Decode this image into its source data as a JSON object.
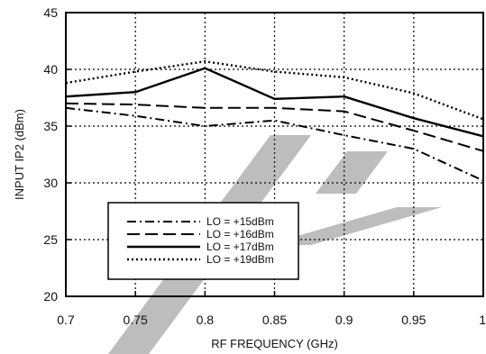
{
  "chart_data": {
    "type": "line",
    "title": "",
    "xlabel": "RF FREQUENCY (GHz)",
    "ylabel": "INPUT IP2 (dBm)",
    "xlim": [
      0.7,
      1.0
    ],
    "ylim": [
      20,
      45
    ],
    "xticks": [
      0.7,
      0.75,
      0.8,
      0.85,
      0.9,
      0.95,
      1.0
    ],
    "xtick_labels": [
      "0.7",
      "0.75",
      "0.8",
      "0.85",
      "0.9",
      "0.95",
      "1"
    ],
    "yticks": [
      20,
      25,
      30,
      35,
      40,
      45
    ],
    "ytick_labels": [
      "20",
      "25",
      "30",
      "35",
      "40",
      "45"
    ],
    "grid": true,
    "legend_position": "lower-left",
    "series": [
      {
        "name": "LO = +15dBm",
        "style": "dash-dot",
        "x": [
          0.7,
          0.75,
          0.8,
          0.85,
          0.9,
          0.95,
          1.0
        ],
        "y": [
          36.6,
          35.9,
          35.0,
          35.5,
          34.2,
          33.0,
          30.2
        ]
      },
      {
        "name": "LO = +16dBm",
        "style": "long-dash",
        "x": [
          0.7,
          0.75,
          0.8,
          0.85,
          0.9,
          0.95,
          1.0
        ],
        "y": [
          37.0,
          36.9,
          36.6,
          36.6,
          36.3,
          34.6,
          32.8
        ]
      },
      {
        "name": "LO = +17dBm",
        "style": "solid",
        "x": [
          0.7,
          0.75,
          0.8,
          0.85,
          0.9,
          0.95,
          1.0
        ],
        "y": [
          37.6,
          38.0,
          40.1,
          37.4,
          37.6,
          35.7,
          34.1
        ]
      },
      {
        "name": "LO = +19dBm",
        "style": "dotted",
        "x": [
          0.7,
          0.75,
          0.8,
          0.85,
          0.9,
          0.95,
          1.0
        ],
        "y": [
          38.8,
          39.8,
          40.7,
          39.8,
          39.3,
          37.9,
          35.6
        ]
      }
    ]
  }
}
